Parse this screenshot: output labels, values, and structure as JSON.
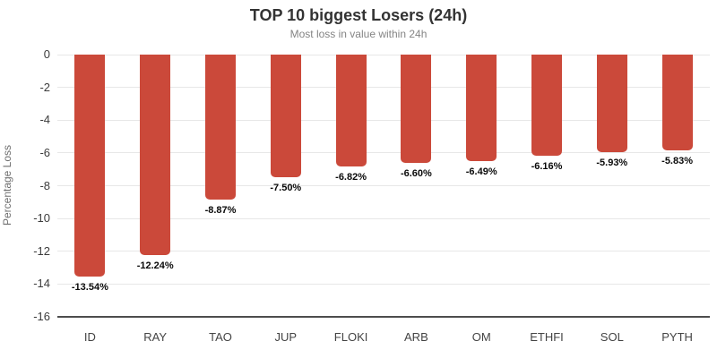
{
  "chart_data": {
    "type": "bar",
    "title": "TOP 10 biggest Losers (24h)",
    "subtitle": "Most loss in value within 24h",
    "xlabel": "",
    "ylabel": "Percentage Loss",
    "categories": [
      "ID",
      "RAY",
      "TAO",
      "JUP",
      "FLOKI",
      "ARB",
      "OM",
      "ETHFI",
      "SOL",
      "PYTH"
    ],
    "values": [
      -13.54,
      -12.24,
      -8.87,
      -7.5,
      -6.82,
      -6.6,
      -6.49,
      -6.16,
      -5.93,
      -5.83
    ],
    "value_labels": [
      "-13.54%",
      "-12.24%",
      "-8.87%",
      "-7.50%",
      "-6.82%",
      "-6.60%",
      "-6.49%",
      "-6.16%",
      "-5.93%",
      "-5.83%"
    ],
    "ylim": [
      -16,
      0
    ],
    "yticks": [
      0,
      -2,
      -4,
      -6,
      -8,
      -10,
      -12,
      -14,
      -16
    ],
    "grid": true,
    "legend": false,
    "colors": {
      "bar": "#cb493a",
      "gridline": "#e7e7e7",
      "axis_line": "#4d4d4d",
      "title_text": "#333333",
      "subtitle_text": "#848484",
      "tick_text": "#3c3c3c",
      "data_label_text": "#0a0a0a"
    }
  }
}
